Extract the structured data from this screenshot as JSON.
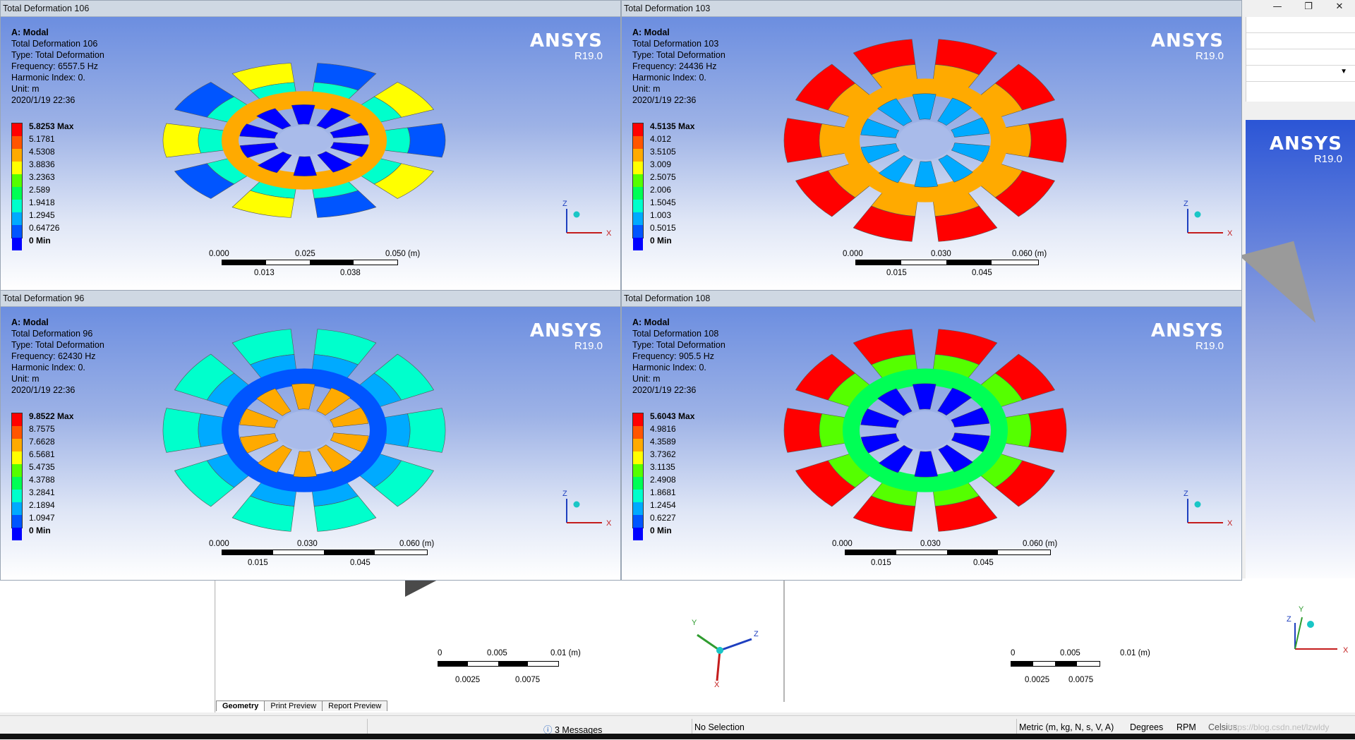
{
  "window": {
    "min_icon": "minimize-icon",
    "max_icon": "restore-icon",
    "close_icon": "close-icon",
    "min_glyph": "—",
    "max_glyph": "❐",
    "close_glyph": "✕"
  },
  "background": {
    "ansys_logo": "ANSYS",
    "ansys_version": "R19.0",
    "bottom_scales": [
      {
        "labels_top": [
          "0",
          "0.005",
          "0.01 (m)"
        ],
        "labels_bottom": [
          "0.0025",
          "0.0075"
        ]
      },
      {
        "labels_top": [
          "0",
          "0.005",
          "0.01 (m)"
        ],
        "labels_bottom": [
          "0.0025",
          "0.0075"
        ]
      }
    ],
    "tabs": [
      "Geometry",
      "Print Preview",
      "Report Preview"
    ],
    "triad_axes": {
      "x": "X",
      "y": "Y",
      "z": "Z"
    }
  },
  "status": {
    "messages": "3 Messages",
    "selection": "No Selection",
    "units": "Metric (m, kg, N, s, V, A)",
    "angle": "Degrees",
    "speed": "RPM",
    "temp": "Celsius",
    "watermark": "https://blog.csdn.net/lzwldy"
  },
  "viewports": [
    {
      "title": "Total Deformation 106",
      "analysis": "A: Modal",
      "name": "Total Deformation 106",
      "type": "Type: Total Deformation",
      "frequency": "Frequency: 6557.5 Hz",
      "harmonic": "Harmonic Index: 0.",
      "unit": "Unit: m",
      "date": "2020/1/19 22:36",
      "legend": [
        "5.8253 Max",
        "5.1781",
        "4.5308",
        "3.8836",
        "3.2363",
        "2.589",
        "1.9418",
        "1.2945",
        "0.64726",
        "0 Min"
      ],
      "scale_top": [
        "0.000",
        "0.025",
        "0.050 (m)"
      ],
      "scale_bottom": [
        "0.013",
        "0.038"
      ],
      "ansys_logo": "ANSYS",
      "ansys_version": "R19.0",
      "triad": {
        "x": "X",
        "z": "Z"
      },
      "pattern": "tilted-ring"
    },
    {
      "title": "Total Deformation 103",
      "analysis": "A: Modal",
      "name": "Total Deformation 103",
      "type": "Type: Total Deformation",
      "frequency": "Frequency: 24436 Hz",
      "harmonic": "Harmonic Index: 0.",
      "unit": "Unit: m",
      "date": "2020/1/19 22:36",
      "legend": [
        "4.5135 Max",
        "4.012",
        "3.5105",
        "3.009",
        "2.5075",
        "2.006",
        "1.5045",
        "1.003",
        "0.5015",
        "0 Min"
      ],
      "scale_top": [
        "0.000",
        "0.030",
        "0.060 (m)"
      ],
      "scale_bottom": [
        "0.015",
        "0.045"
      ],
      "ansys_logo": "ANSYS",
      "ansys_version": "R19.0",
      "triad": {
        "x": "X",
        "z": "Z"
      },
      "pattern": "twisted-orange"
    },
    {
      "title": "Total Deformation 96",
      "analysis": "A: Modal",
      "name": "Total Deformation 96",
      "type": "Type: Total Deformation",
      "frequency": "Frequency: 62430 Hz",
      "harmonic": "Harmonic Index: 0.",
      "unit": "Unit: m",
      "date": "2020/1/19 22:36",
      "legend": [
        "9.8522 Max",
        "8.7575",
        "7.6628",
        "6.5681",
        "5.4735",
        "4.3788",
        "3.2841",
        "2.1894",
        "1.0947",
        "0 Min"
      ],
      "scale_top": [
        "0.000",
        "0.030",
        "0.060 (m)"
      ],
      "scale_bottom": [
        "0.015",
        "0.045"
      ],
      "ansys_logo": "ANSYS",
      "ansys_version": "R19.0",
      "triad": {
        "x": "X",
        "z": "Z"
      },
      "pattern": "cyan-lobes"
    },
    {
      "title": "Total Deformation 108",
      "analysis": "A: Modal",
      "name": "Total Deformation 108",
      "type": "Type: Total Deformation",
      "frequency": "Frequency: 905.5 Hz",
      "harmonic": "Harmonic Index: 0.",
      "unit": "Unit: m",
      "date": "2020/1/19 22:36",
      "legend": [
        "5.6043 Max",
        "4.9816",
        "4.3589",
        "3.7362",
        "3.1135",
        "2.4908",
        "1.8681",
        "1.2454",
        "0.6227",
        "0 Min"
      ],
      "scale_top": [
        "0.000",
        "0.030",
        "0.060 (m)"
      ],
      "scale_bottom": [
        "0.015",
        "0.045"
      ],
      "ansys_logo": "ANSYS",
      "ansys_version": "R19.0",
      "triad": {
        "x": "X",
        "z": "Z"
      },
      "pattern": "radial-rainbow"
    }
  ],
  "legend_colors": [
    "#ff0000",
    "#ff5500",
    "#ffaa00",
    "#ffff00",
    "#55ff00",
    "#00ff55",
    "#00ffcc",
    "#00aaff",
    "#0055ff",
    "#0000ff"
  ]
}
